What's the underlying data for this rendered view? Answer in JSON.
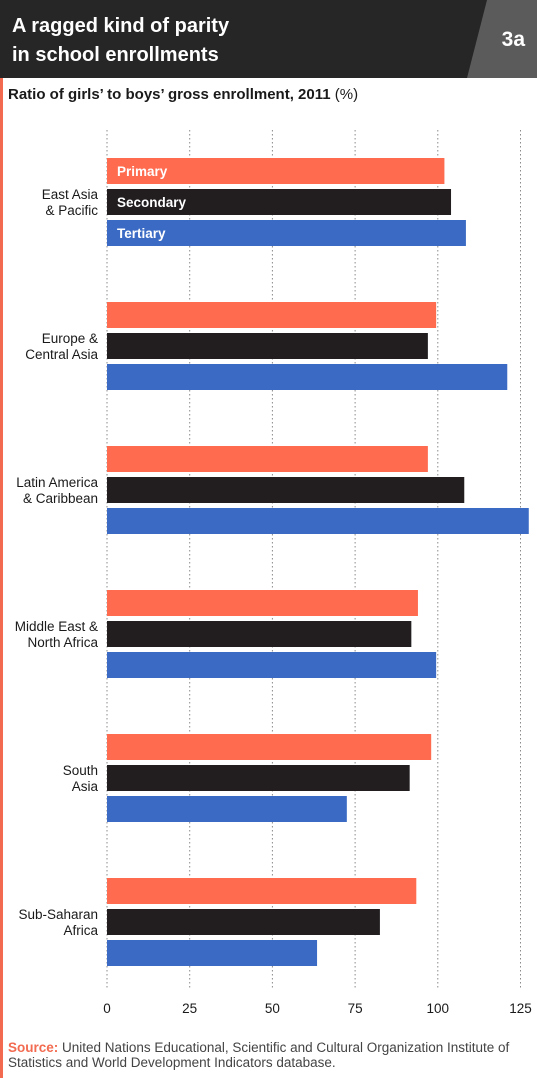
{
  "header": {
    "title": "A ragged kind of parity\nin school enrollments",
    "badge": "3a"
  },
  "subtitle": {
    "text": "Ratio of girls’ to boys’ gross enrollment, 2011",
    "unit": "(%)"
  },
  "source": {
    "label": "Source:",
    "text": "United Nations Educational, Scientific and Cultural Organization Institute of Statistics and World Development Indicators database."
  },
  "colors": {
    "primary": "#ff6b4f",
    "secondary": "#221e1f",
    "tertiary": "#3a6ac4",
    "grid": "#8a8a8a"
  },
  "chart_data": {
    "type": "bar",
    "orientation": "horizontal",
    "categories": [
      "East Asia\n& Pacific",
      "Europe &\nCentral Asia",
      "Latin America\n& Caribbean",
      "Middle East &\nNorth Africa",
      "South\nAsia",
      "Sub-Saharan\nAfrica"
    ],
    "series": [
      {
        "name": "Primary",
        "color": "#ff6b4f",
        "values": [
          102,
          99.5,
          97,
          94,
          98,
          93.5
        ]
      },
      {
        "name": "Secondary",
        "color": "#221e1f",
        "values": [
          104,
          97,
          108,
          92,
          91.5,
          82.5
        ]
      },
      {
        "name": "Tertiary",
        "color": "#3a6ac4",
        "values": [
          108.5,
          121,
          127.5,
          99.5,
          72.5,
          63.5
        ]
      }
    ],
    "xlim": [
      0,
      128
    ],
    "xticks": [
      0,
      25,
      50,
      75,
      100,
      125
    ],
    "grid": "vertical dotted",
    "legend": "inside first group bars"
  }
}
